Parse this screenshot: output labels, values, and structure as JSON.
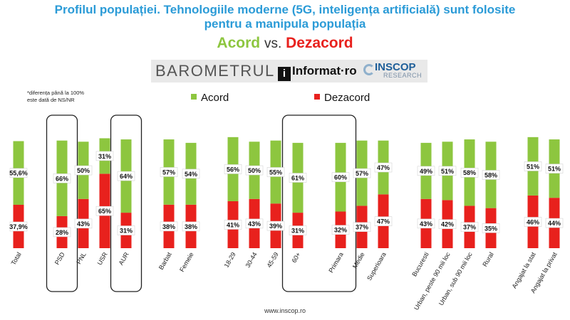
{
  "header": {
    "title_line1": "Profilul populației. Tehnologiile moderne (5G, inteligența artificială) sunt folosite",
    "title_line2": "pentru a manipula populația",
    "acord_word": "Acord",
    "vs_word": "vs.",
    "dezacord_word": "Dezacord"
  },
  "logos": {
    "barometrul": "BAROMETRUL",
    "informat_i": "i",
    "informat": "Informat·ro",
    "inscop": "INSCOP",
    "inscop_sub": "RESEARCH"
  },
  "note": {
    "line1": "*diferența până la 100%",
    "line2": "este dată de NS/NR"
  },
  "legend": {
    "acord": "Acord",
    "dezacord": "Dezacord"
  },
  "footer": {
    "url": "www.inscop.ro"
  },
  "colors": {
    "acord": "#8dc63f",
    "dezacord": "#e8211d",
    "title": "#2b9bd7",
    "highlight_box": "#222222"
  },
  "chart_data": {
    "type": "bar",
    "stacked": true,
    "categories": [
      "Total",
      "PSD",
      "PNL",
      "USR",
      "AUR",
      "Barbat",
      "Femeie",
      "18-29",
      "30-44",
      "45-59",
      "60+",
      "Primara",
      "Medie",
      "Superioara",
      "Bucuresti",
      "Urban, peste 90 mii loc",
      "Urban, sub 90 mii loc",
      "Rural",
      "Angajat la stat",
      "Angajat la privat"
    ],
    "series": [
      {
        "name": "Dezacord",
        "values": [
          37.9,
          28,
          43,
          65,
          31,
          38,
          38,
          41,
          43,
          39,
          31,
          32,
          37,
          47,
          43,
          42,
          37,
          35,
          46,
          44
        ],
        "labels": [
          "37,9%",
          "28%",
          "43%",
          "65%",
          "31%",
          "38%",
          "38%",
          "41%",
          "43%",
          "39%",
          "31%",
          "32%",
          "37%",
          "47%",
          "43%",
          "42%",
          "37%",
          "35%",
          "46%",
          "44%"
        ]
      },
      {
        "name": "Acord",
        "values": [
          55.6,
          66,
          50,
          31,
          64,
          57,
          54,
          56,
          50,
          55,
          61,
          60,
          57,
          47,
          49,
          51,
          58,
          58,
          51,
          51
        ],
        "labels": [
          "55,6%",
          "66%",
          "50%",
          "31%",
          "64%",
          "57%",
          "54%",
          "56%",
          "50%",
          "55%",
          "61%",
          "60%",
          "57%",
          "47%",
          "49%",
          "51%",
          "58%",
          "58%",
          "51%",
          "51%"
        ]
      }
    ],
    "highlighted_categories": [
      "PSD",
      "AUR",
      "60+",
      "Primara"
    ],
    "legend": "top",
    "grid": false
  }
}
